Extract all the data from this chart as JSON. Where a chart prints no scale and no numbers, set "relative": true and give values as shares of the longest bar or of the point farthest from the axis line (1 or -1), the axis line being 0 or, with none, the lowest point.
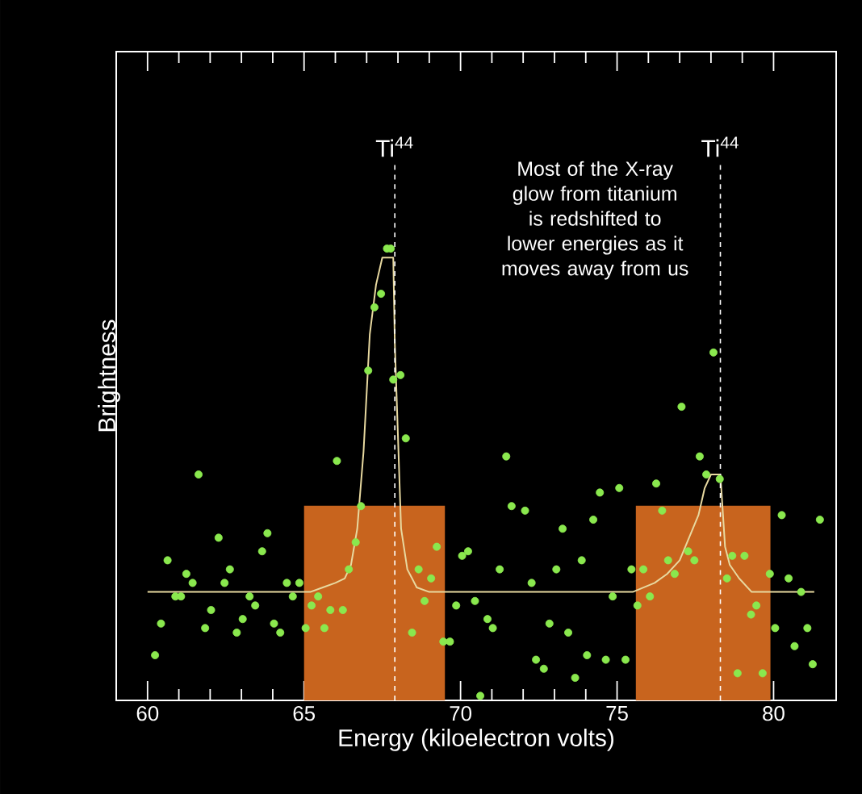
{
  "chart_data": {
    "type": "scatter",
    "relative": true,
    "xlabel": "Energy (kiloelectron volts)",
    "ylabel": "Brightness",
    "xlim": [
      59,
      82
    ],
    "xticks": [
      60,
      65,
      70,
      75,
      80
    ],
    "annotations": [
      "Most of the X-ray glow from titanium is redshifted to lower energies as it moves away from us"
    ],
    "ref_lines": [
      {
        "axis": "x",
        "value": 67.9,
        "label": "Ti$^{44}$",
        "line_style": "dashed",
        "color": "#ffffff"
      },
      {
        "axis": "x",
        "value": 78.3,
        "label": "Ti$^{44}$",
        "line_style": "dashed",
        "color": "#ffffff"
      }
    ],
    "bands": [
      {
        "axis": "x",
        "from": 65.0,
        "to": 69.5,
        "color": "#c8641e"
      },
      {
        "axis": "x",
        "from": 75.6,
        "to": 79.9,
        "color": "#c8641e"
      }
    ],
    "series": [
      {
        "marker": "circle",
        "color": "#8ae84e",
        "x": [
          60.24,
          60.43,
          60.64,
          60.89,
          61.07,
          61.24,
          61.44,
          61.63,
          61.84,
          62.03,
          62.27,
          62.46,
          62.63,
          62.85,
          63.04,
          63.26,
          63.44,
          63.66,
          63.83,
          64.04,
          64.24,
          64.45,
          64.64,
          64.85,
          65.05,
          65.24,
          65.45,
          65.65,
          65.84,
          66.05,
          66.24,
          66.43,
          66.65,
          66.82,
          67.05,
          67.25,
          67.46,
          67.65,
          67.77,
          67.85,
          68.08,
          68.25,
          68.45,
          68.66,
          68.85,
          69.06,
          69.24,
          69.45,
          69.66,
          69.86,
          70.05,
          70.24,
          70.46,
          70.63,
          70.86,
          71.03,
          71.25,
          71.46,
          71.63,
          72.06,
          72.27,
          72.41,
          72.66,
          72.84,
          73.06,
          73.26,
          73.44,
          73.66,
          73.87,
          74.04,
          74.24,
          74.45,
          74.64,
          74.86,
          75.07,
          75.27,
          75.46,
          75.65,
          75.84,
          76.05,
          76.25,
          76.44,
          76.63,
          76.84,
          77.06,
          77.27,
          77.47,
          77.64,
          77.85,
          78.08,
          78.28,
          78.51,
          78.68,
          78.85,
          79.07,
          79.28,
          79.45,
          79.65,
          79.88,
          80.05,
          80.26,
          80.48,
          80.67,
          80.88,
          81.08,
          81.25,
          81.48
        ],
        "values": [
          0.1,
          0.17,
          0.31,
          0.23,
          0.23,
          0.28,
          0.26,
          0.5,
          0.16,
          0.2,
          0.36,
          0.26,
          0.29,
          0.15,
          0.18,
          0.23,
          0.21,
          0.33,
          0.37,
          0.17,
          0.15,
          0.26,
          0.23,
          0.26,
          0.16,
          0.21,
          0.23,
          0.16,
          0.2,
          0.53,
          0.2,
          0.29,
          0.35,
          0.43,
          0.73,
          0.87,
          0.9,
          1.0,
          1.0,
          0.71,
          0.72,
          0.58,
          0.15,
          0.29,
          0.22,
          0.27,
          0.34,
          0.13,
          0.13,
          0.21,
          0.32,
          0.33,
          0.22,
          0.01,
          0.18,
          0.16,
          0.29,
          0.54,
          0.43,
          0.42,
          0.26,
          0.09,
          0.07,
          0.17,
          0.29,
          0.38,
          0.15,
          0.05,
          0.31,
          0.1,
          0.4,
          0.46,
          0.09,
          0.23,
          0.47,
          0.09,
          0.29,
          0.21,
          0.29,
          0.23,
          0.48,
          0.42,
          0.31,
          0.28,
          0.65,
          0.33,
          0.31,
          0.54,
          0.5,
          0.77,
          0.49,
          0.27,
          0.32,
          0.06,
          0.32,
          0.19,
          0.21,
          0.06,
          0.28,
          0.16,
          0.41,
          0.27,
          0.12,
          0.24,
          0.16,
          0.08,
          0.4
        ]
      },
      {
        "type": "line",
        "marker": "none",
        "color": "#e8d9a0",
        "x": [
          60.0,
          65.2,
          65.6,
          66.0,
          66.3,
          66.5,
          66.7,
          66.9,
          67.1,
          67.3,
          67.5,
          67.85,
          67.9,
          68.1,
          68.3,
          68.6,
          69.0,
          75.5,
          76.2,
          76.6,
          77.0,
          77.3,
          77.6,
          77.8,
          78.0,
          78.3,
          78.45,
          78.6,
          78.9,
          79.3,
          81.3
        ],
        "values": [
          0.24,
          0.24,
          0.25,
          0.26,
          0.27,
          0.3,
          0.38,
          0.55,
          0.81,
          0.92,
          0.98,
          0.98,
          0.79,
          0.38,
          0.29,
          0.25,
          0.24,
          0.24,
          0.26,
          0.28,
          0.31,
          0.36,
          0.41,
          0.47,
          0.5,
          0.5,
          0.34,
          0.3,
          0.27,
          0.24,
          0.24
        ]
      }
    ]
  }
}
